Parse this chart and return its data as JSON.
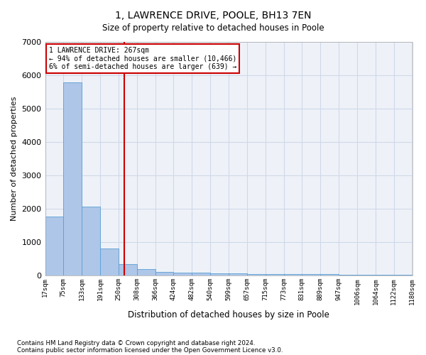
{
  "title_line1": "1, LAWRENCE DRIVE, POOLE, BH13 7EN",
  "title_line2": "Size of property relative to detached houses in Poole",
  "xlabel": "Distribution of detached houses by size in Poole",
  "ylabel": "Number of detached properties",
  "annotation_line1": "1 LAWRENCE DRIVE: 267sqm",
  "annotation_line2": "← 94% of detached houses are smaller (10,466)",
  "annotation_line3": "6% of semi-detached houses are larger (639) →",
  "property_sqm": 267,
  "bin_edges": [
    17,
    75,
    133,
    191,
    250,
    308,
    366,
    424,
    482,
    540,
    599,
    657,
    715,
    773,
    831,
    889,
    947,
    1006,
    1064,
    1122,
    1180
  ],
  "bar_heights": [
    1780,
    5780,
    2060,
    810,
    340,
    190,
    120,
    100,
    100,
    70,
    60,
    55,
    50,
    45,
    40,
    38,
    35,
    32,
    30,
    28
  ],
  "bar_color": "#aec6e8",
  "bar_edge_color": "#5a9fd4",
  "vline_color": "#cc0000",
  "vline_x": 267,
  "ylim": [
    0,
    7000
  ],
  "grid_color": "#d0d8e8",
  "background_color": "#eef2f8",
  "footnote1": "Contains HM Land Registry data © Crown copyright and database right 2024.",
  "footnote2": "Contains public sector information licensed under the Open Government Licence v3.0."
}
